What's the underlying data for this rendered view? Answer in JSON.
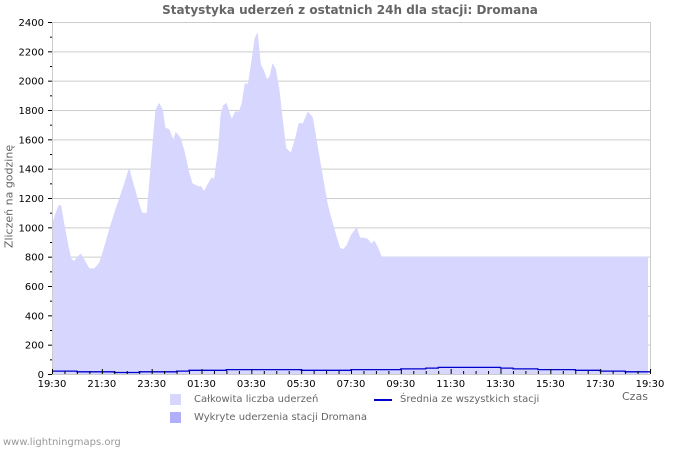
{
  "chart_data": {
    "type": "area",
    "title": "Statystyka uderzeń z ostatnich 24h dla stacji: Dromana",
    "xlabel": "Czas",
    "ylabel": "Zliczeń na godzinę",
    "ylim": [
      0,
      2400
    ],
    "yticks": [
      0,
      200,
      400,
      600,
      800,
      1000,
      1200,
      1400,
      1600,
      1800,
      2000,
      2200,
      2400
    ],
    "xticks": [
      "19:30",
      "21:30",
      "23:30",
      "01:30",
      "03:30",
      "05:30",
      "07:30",
      "09:30",
      "11:30",
      "13:30",
      "15:30",
      "17:30",
      "19:30"
    ],
    "grid": true,
    "legend_position": "bottom",
    "series": [
      {
        "name": "Całkowita liczba uderzeń",
        "kind": "area",
        "color": "#d6d6fe",
        "x_minutes_from_start": [
          0,
          9,
          16,
          22,
          31,
          40,
          46,
          53,
          61,
          69,
          78,
          90,
          102,
          114,
          126,
          138,
          150,
          162,
          174,
          186,
          192,
          200,
          208,
          213,
          218,
          228,
          234,
          243,
          249,
          258,
          267,
          273,
          282,
          292,
          298,
          310,
          320,
          330,
          338,
          352,
          359,
          366,
          376,
          384,
          390,
          400,
          406,
          412,
          420,
          428,
          433,
          441,
          450,
          457,
          464,
          472,
          479,
          488,
          495,
          503,
          510,
          518,
          524,
          531,
          539,
          548,
          555,
          564,
          575,
          585,
          594,
          604,
          616,
          628,
          640,
          652,
          664,
          674,
          684,
          694,
          701,
          710,
          720,
          734,
          742,
          752,
          761,
          769,
          776,
          784,
          794,
          800,
          814,
          821,
          828,
          836,
          843,
          853,
          860,
          870,
          876,
          884,
          892,
          896,
          903,
          910,
          918,
          926,
          934,
          942,
          950,
          958,
          966,
          974,
          982,
          990,
          1000,
          1006,
          1014,
          1020,
          1028,
          1036,
          1044,
          1050,
          1056,
          1064,
          1072,
          1080,
          1088,
          1096,
          1104,
          1114,
          1124,
          1134,
          1144,
          1154,
          1164,
          1174,
          1182,
          1190,
          1200,
          1210,
          1218,
          1226,
          1232,
          1240,
          1248,
          1256,
          1262,
          1272,
          1284,
          1296,
          1308,
          1316,
          1324,
          1332,
          1340,
          1350,
          1360,
          1370,
          1380,
          1390,
          1400,
          1410,
          1420,
          1428,
          1436,
          1440
        ],
        "values": [
          1020,
          1100,
          1150,
          1150,
          1000,
          870,
          790,
          770,
          800,
          820,
          780,
          720,
          720,
          760,
          870,
          990,
          1100,
          1200,
          1300,
          1410,
          1340,
          1260,
          1180,
          1130,
          1100,
          1100,
          1300,
          1600,
          1800,
          1850,
          1800,
          1680,
          1670,
          1600,
          1650,
          1610,
          1510,
          1380,
          1300,
          1280,
          1280,
          1250,
          1300,
          1340,
          1330,
          1530,
          1770,
          1830,
          1850,
          1780,
          1740,
          1790,
          1790,
          1850,
          1980,
          1980,
          2110,
          2290,
          2330,
          2110,
          2070,
          2010,
          2030,
          2120,
          2080,
          1930,
          1750,
          1540,
          1510,
          1600,
          1710,
          1710,
          1790,
          1750,
          1550,
          1350,
          1160,
          1050,
          950,
          860,
          850,
          880,
          950,
          1000,
          930,
          930,
          920,
          890,
          910,
          870,
          800,
          800,
          800,
          800,
          800,
          800,
          800,
          800,
          800,
          800,
          800,
          800,
          800,
          800,
          800,
          800,
          800,
          800,
          800,
          800,
          800,
          800,
          800,
          800,
          800,
          800,
          800,
          800,
          800,
          800,
          800,
          800,
          800,
          800,
          800,
          800,
          800,
          800,
          800,
          800,
          800,
          800,
          800,
          800,
          800,
          800,
          800,
          800,
          800,
          800,
          800,
          800,
          800,
          800,
          800,
          800,
          800,
          800,
          800,
          800,
          800,
          800,
          800,
          800,
          800,
          800,
          800,
          800,
          800,
          800,
          800,
          800,
          800,
          800,
          800,
          800,
          800,
          800,
          800,
          800,
          800
        ]
      },
      {
        "name": "Wykryte uderzenia stacji Dromana",
        "kind": "area",
        "color": "#b0b0fa",
        "values_note": "not visibly rendered above baseline"
      },
      {
        "name": "Średnia ze wszystkich stacji",
        "kind": "line",
        "color": "#0000cc",
        "x_minutes_from_start": [
          0,
          30,
          60,
          90,
          120,
          150,
          180,
          210,
          240,
          270,
          300,
          330,
          360,
          390,
          420,
          450,
          480,
          510,
          540,
          570,
          600,
          630,
          660,
          690,
          720,
          750,
          780,
          810,
          840,
          870,
          900,
          930,
          960,
          990,
          1020,
          1050,
          1080,
          1110,
          1140,
          1170,
          1200,
          1230,
          1260,
          1290,
          1320,
          1350,
          1380,
          1410,
          1440
        ],
        "values": [
          20,
          20,
          15,
          15,
          15,
          10,
          10,
          15,
          15,
          15,
          20,
          25,
          25,
          25,
          30,
          30,
          30,
          30,
          30,
          30,
          25,
          25,
          25,
          25,
          30,
          30,
          30,
          30,
          35,
          35,
          40,
          45,
          45,
          45,
          45,
          45,
          40,
          35,
          35,
          30,
          30,
          30,
          25,
          25,
          20,
          20,
          15,
          15,
          15
        ]
      }
    ]
  },
  "legend": {
    "items": [
      {
        "label": "Całkowita liczba uderzeń",
        "color": "#d6d6fe"
      },
      {
        "label": "Średnia ze wszystkich stacji",
        "color": "#0000cc"
      },
      {
        "label": "Wykryte uderzenia stacji Dromana",
        "color": "#b0b0fa"
      }
    ]
  },
  "footer": {
    "text": "www.lightningmaps.org"
  }
}
